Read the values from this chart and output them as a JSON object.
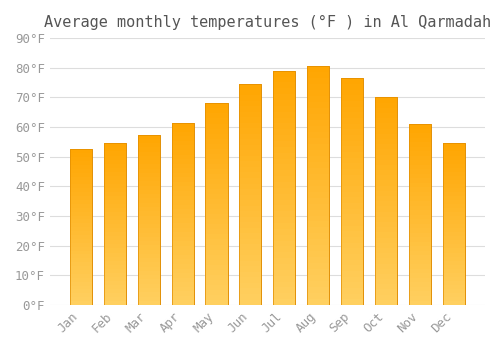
{
  "title": "Average monthly temperatures (°F ) in Al Qarmadah",
  "months": [
    "Jan",
    "Feb",
    "Mar",
    "Apr",
    "May",
    "Jun",
    "Jul",
    "Aug",
    "Sep",
    "Oct",
    "Nov",
    "Dec"
  ],
  "values": [
    52.5,
    54.5,
    57.5,
    61.5,
    68,
    74.5,
    79,
    80.5,
    76.5,
    70,
    61,
    54.5
  ],
  "bar_color_top": "#FFA500",
  "bar_color_bottom": "#FFD060",
  "bar_edge_color": "#E08C00",
  "background_color": "#ffffff",
  "grid_color": "#dddddd",
  "ylim": [
    0,
    90
  ],
  "yticks": [
    0,
    10,
    20,
    30,
    40,
    50,
    60,
    70,
    80,
    90
  ],
  "tick_label_color": "#999999",
  "title_color": "#555555",
  "title_fontsize": 11,
  "tick_fontsize": 9,
  "font_family": "monospace"
}
